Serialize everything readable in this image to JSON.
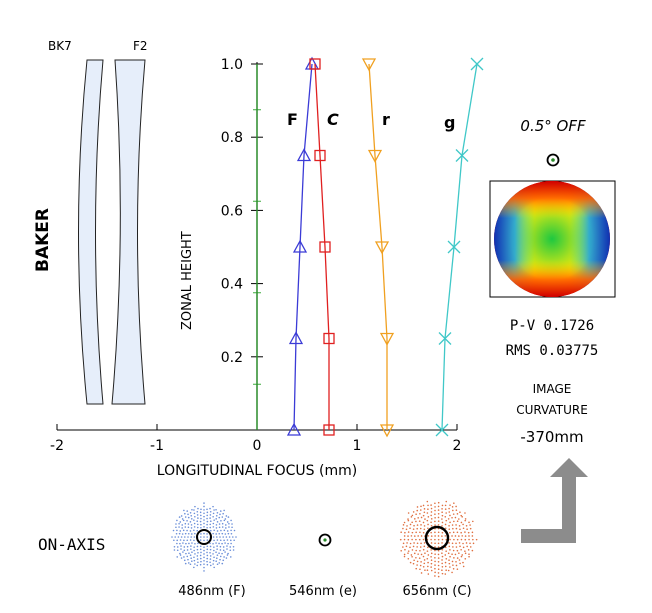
{
  "lens": {
    "name": "BAKER",
    "glass_1": "BK7",
    "glass_2": "F2"
  },
  "chart_data": {
    "type": "line",
    "xlabel": "LONGITUDINAL FOCUS (mm)",
    "ylabel": "ZONAL HEIGHT",
    "xlim": [
      -2,
      2
    ],
    "ylim": [
      0,
      1.0
    ],
    "x_ticks": [
      "-2",
      "-1",
      "0",
      "1",
      "2"
    ],
    "y_ticks": [
      "0.2",
      "0.4",
      "0.6",
      "0.8",
      "1.0"
    ],
    "grid": false,
    "series": [
      {
        "name": "e",
        "color": "#2a8c2a",
        "marker": "none",
        "points": [
          [
            0,
            0
          ],
          [
            0,
            0.25
          ],
          [
            0,
            0.5
          ],
          [
            0,
            0.75
          ],
          [
            0,
            1.0
          ]
        ]
      },
      {
        "name": "F",
        "color": "#3b3bd6",
        "marker": "triangle-up",
        "points": [
          [
            0.37,
            0
          ],
          [
            0.39,
            0.25
          ],
          [
            0.43,
            0.5
          ],
          [
            0.47,
            0.75
          ],
          [
            0.55,
            1.0
          ]
        ]
      },
      {
        "name": "C",
        "color": "#e02020",
        "marker": "square",
        "points": [
          [
            0.72,
            0
          ],
          [
            0.72,
            0.25
          ],
          [
            0.68,
            0.5
          ],
          [
            0.63,
            0.75
          ],
          [
            0.58,
            1.0
          ]
        ]
      },
      {
        "name": "r",
        "color": "#f0a020",
        "marker": "triangle-down",
        "points": [
          [
            1.3,
            0
          ],
          [
            1.3,
            0.25
          ],
          [
            1.25,
            0.5
          ],
          [
            1.18,
            0.75
          ],
          [
            1.12,
            1.0
          ]
        ]
      },
      {
        "name": "g",
        "color": "#40c8c8",
        "marker": "x",
        "points": [
          [
            1.85,
            0
          ],
          [
            1.88,
            0.25
          ],
          [
            1.97,
            0.5
          ],
          [
            2.05,
            0.75
          ],
          [
            2.2,
            1.0
          ]
        ]
      }
    ]
  },
  "curve_labels": {
    "F": "F",
    "C": "C",
    "r": "r",
    "g": "g"
  },
  "off_axis": {
    "title": "0.5° OFF",
    "pv": "P-V  0.1726",
    "rms": "RMS  0.03775"
  },
  "curvature": {
    "line1": "IMAGE",
    "line2": "CURVATURE",
    "value": "-370mm"
  },
  "on_axis": {
    "label": "ON-AXIS",
    "wl_F": "486nm (F)",
    "wl_e": "546nm (e)",
    "wl_C": "656nm (C)"
  },
  "colors": {
    "lens_fill": "#e6eefa",
    "arrow": "#8c8c8c",
    "spot_blue": "#6a8ed8",
    "spot_red": "#e07040"
  }
}
